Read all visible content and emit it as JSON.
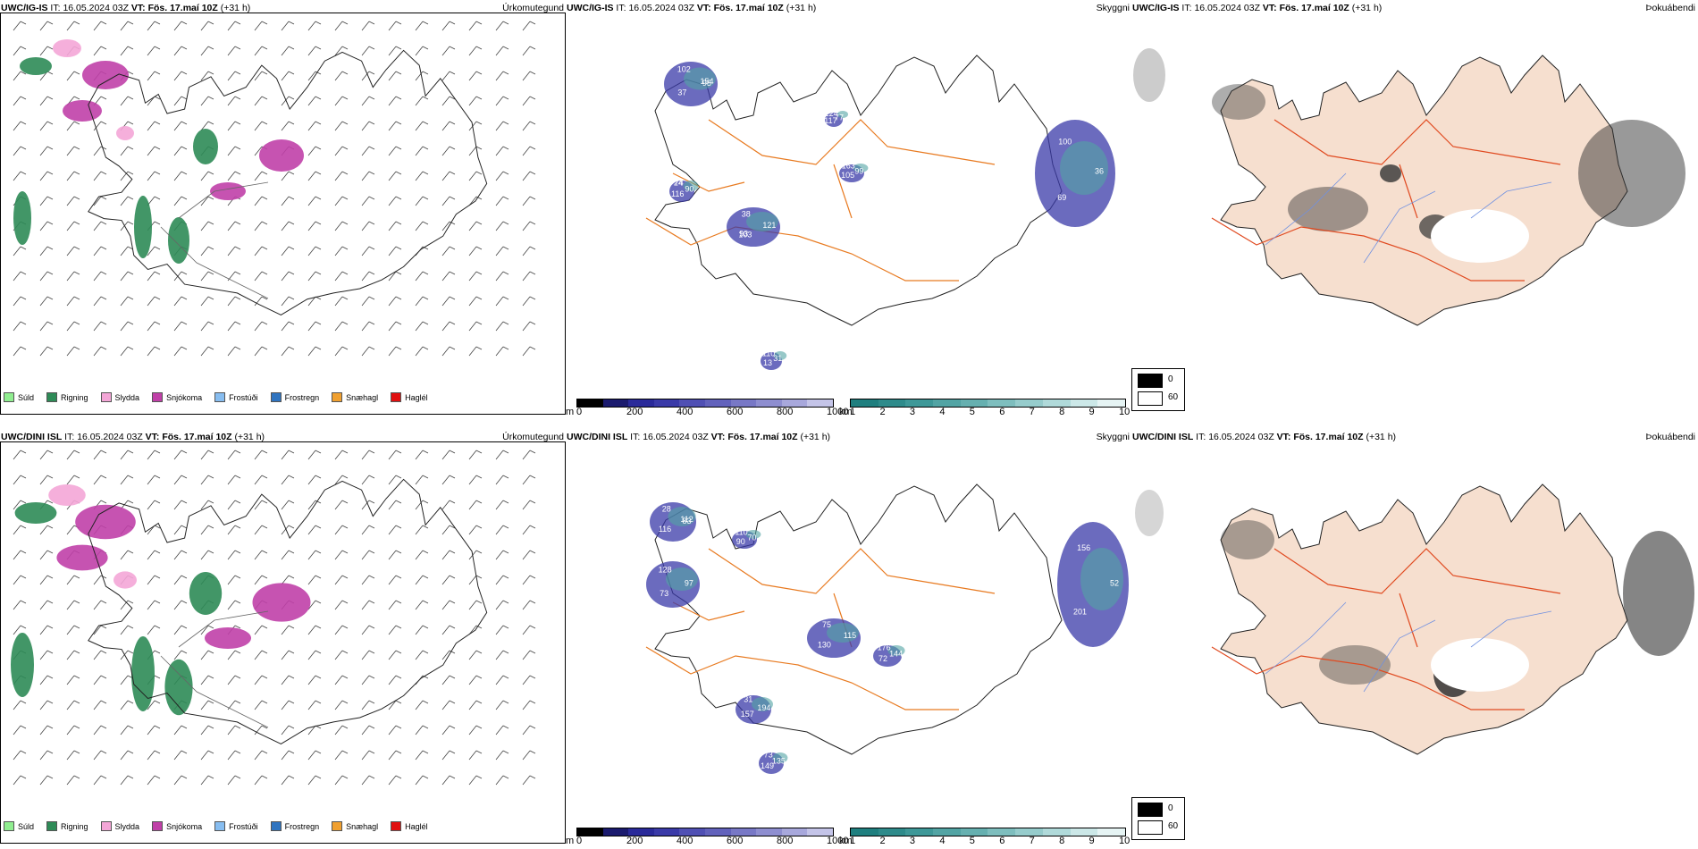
{
  "rows": [
    {
      "model_label": "UWC/IG-IS",
      "it_label": "IT:",
      "it_value": "16.05.2024 03Z",
      "vt_label": "VT:",
      "vt_value": "Fös. 17.maí 10Z",
      "lead": "(+31 h)"
    },
    {
      "model_label": "UWC/DINI ISL",
      "it_label": "IT:",
      "it_value": "16.05.2024 03Z",
      "vt_label": "VT:",
      "vt_value": "Fös. 17.maí 10Z",
      "lead": "(+31 h)"
    }
  ],
  "panels": {
    "precip_type_title": "Úrkomutegund",
    "visibility_title": "Skyggni",
    "fog_title": "Þokuábendi"
  },
  "precip_legend": [
    {
      "label": "Súld",
      "color": "#90ee90"
    },
    {
      "label": "Rigning",
      "color": "#2e8b57"
    },
    {
      "label": "Slydda",
      "color": "#f4a6d7"
    },
    {
      "label": "Snjókoma",
      "color": "#c040a8"
    },
    {
      "label": "Frostúði",
      "color": "#87bdf0"
    },
    {
      "label": "Frostregn",
      "color": "#2f74c0"
    },
    {
      "label": "Snæhagl",
      "color": "#f0a030"
    },
    {
      "label": "Haglél",
      "color": "#e01010"
    }
  ],
  "elevation_bar": {
    "unit": "m",
    "ticks": [
      "0",
      "200",
      "400",
      "600",
      "800",
      "1000"
    ],
    "colors": [
      "#000000",
      "#1a1a6e",
      "#2a2a9a",
      "#3a3aa8",
      "#5050b4",
      "#6262bc",
      "#7878c6",
      "#8e8ed0",
      "#a8a8dc",
      "#c4c4e8"
    ]
  },
  "visibility_bar": {
    "unit": "km",
    "ticks": [
      "1",
      "2",
      "3",
      "4",
      "5",
      "6",
      "7",
      "8",
      "9",
      "10"
    ],
    "colors": [
      "#1f7f7f",
      "#2e8b8b",
      "#3e9898",
      "#52a4a4",
      "#66b0b0",
      "#7ebebe",
      "#96cccc",
      "#b0dada",
      "#cce8e8",
      "#e6f4f4"
    ]
  },
  "fog_key": {
    "high": "0",
    "low": "60"
  },
  "vis_labels_top": [
    "154",
    "103",
    "24",
    "36",
    "105",
    "224",
    "31",
    "37",
    "38",
    "90",
    "69",
    "163",
    "77",
    "13",
    "102",
    "121",
    "116",
    "100",
    "99",
    "117",
    "110",
    "95",
    "93",
    "74"
  ],
  "vis_labels_bottom": [
    "112",
    "90",
    "128",
    "115",
    "72",
    "31",
    "52",
    "149",
    "28",
    "70",
    "73",
    "75",
    "144",
    "157",
    "156",
    "135",
    "116",
    "110",
    "97",
    "130",
    "176",
    "194",
    "201",
    "73",
    "83"
  ]
}
